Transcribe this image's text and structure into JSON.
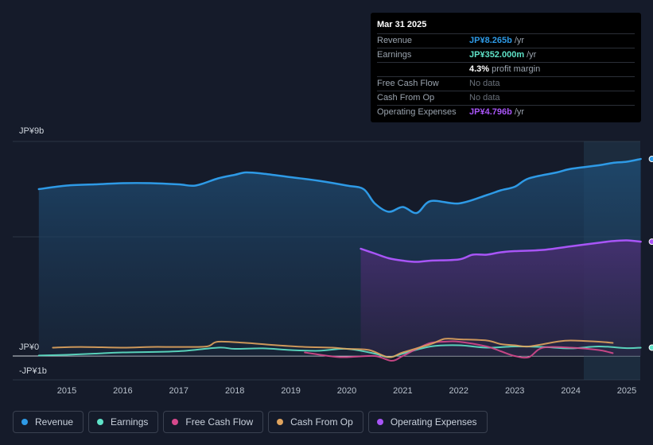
{
  "tooltip": {
    "date": "Mar 31 2025",
    "rows": [
      {
        "label": "Revenue",
        "value": "JP¥8.265b",
        "unit": "/yr",
        "color": "#2e9ae6"
      },
      {
        "label": "Earnings",
        "value": "JP¥352.000m",
        "unit": "/yr",
        "color": "#5fe3c8"
      },
      {
        "label": "",
        "value": "4.3%",
        "unit": "profit margin"
      },
      {
        "label": "Free Cash Flow",
        "value": "No data"
      },
      {
        "label": "Cash From Op",
        "value": "No data"
      },
      {
        "label": "Operating Expenses",
        "value": "JP¥4.796b",
        "unit": "/yr",
        "color": "#a855f7"
      }
    ]
  },
  "legend": [
    {
      "label": "Revenue",
      "color": "#2e9ae6"
    },
    {
      "label": "Earnings",
      "color": "#5fe3c8"
    },
    {
      "label": "Free Cash Flow",
      "color": "#d6498c"
    },
    {
      "label": "Cash From Op",
      "color": "#e0a45e"
    },
    {
      "label": "Operating Expenses",
      "color": "#a855f7"
    }
  ],
  "chart_data": {
    "type": "line",
    "title": "",
    "xlabel": "",
    "ylabel": "",
    "y_tick_labels": [
      "JP¥9b",
      "JP¥0",
      "-JP¥1b"
    ],
    "x_tick_labels": [
      "2015",
      "2016",
      "2017",
      "2018",
      "2019",
      "2020",
      "2021",
      "2022",
      "2023",
      "2024",
      "2025"
    ],
    "xlim": [
      2014.5,
      2025.25
    ],
    "ylim": [
      -1,
      9
    ],
    "series": [
      {
        "name": "Revenue",
        "color": "#2e9ae6",
        "area": true,
        "x": [
          2014.5,
          2015.0,
          2015.5,
          2016.0,
          2016.5,
          2017.0,
          2017.3,
          2017.7,
          2018.0,
          2018.2,
          2018.5,
          2019.0,
          2019.5,
          2020.0,
          2020.3,
          2020.5,
          2020.75,
          2021.0,
          2021.25,
          2021.5,
          2022.0,
          2022.5,
          2022.75,
          2023.0,
          2023.25,
          2023.75,
          2024.0,
          2024.5,
          2024.75,
          2025.0,
          2025.25
        ],
        "values": [
          7.0,
          7.15,
          7.2,
          7.25,
          7.25,
          7.2,
          7.15,
          7.45,
          7.6,
          7.7,
          7.65,
          7.5,
          7.35,
          7.15,
          7.0,
          6.4,
          6.05,
          6.25,
          6.0,
          6.5,
          6.4,
          6.75,
          6.95,
          7.1,
          7.45,
          7.7,
          7.85,
          8.0,
          8.1,
          8.15,
          8.265
        ]
      },
      {
        "name": "Earnings",
        "color": "#5fe3c8",
        "area": false,
        "x": [
          2014.5,
          2015.0,
          2015.5,
          2016.0,
          2017.0,
          2017.7,
          2018.0,
          2018.5,
          2019.0,
          2019.5,
          2020.0,
          2020.5,
          2020.75,
          2021.0,
          2021.5,
          2022.0,
          2022.5,
          2023.0,
          2023.5,
          2024.0,
          2024.5,
          2025.0,
          2025.25
        ],
        "values": [
          0.02,
          0.05,
          0.1,
          0.15,
          0.2,
          0.35,
          0.3,
          0.32,
          0.25,
          0.22,
          0.3,
          0.1,
          -0.05,
          0.1,
          0.4,
          0.45,
          0.35,
          0.4,
          0.38,
          0.32,
          0.4,
          0.33,
          0.352
        ]
      },
      {
        "name": "Free Cash Flow",
        "color": "#d6498c",
        "area": false,
        "x": [
          2019.25,
          2019.75,
          2020.0,
          2020.5,
          2020.8,
          2021.0,
          2021.25,
          2021.5,
          2021.75,
          2022.0,
          2022.5,
          2022.75,
          2023.0,
          2023.25,
          2023.5,
          2024.0,
          2024.5,
          2024.75
        ],
        "values": [
          0.15,
          -0.02,
          -0.05,
          0.0,
          -0.2,
          0.0,
          0.3,
          0.55,
          0.6,
          0.6,
          0.4,
          0.2,
          0.0,
          -0.05,
          0.35,
          0.35,
          0.25,
          0.12
        ]
      },
      {
        "name": "Cash From Op",
        "color": "#e0a45e",
        "area": false,
        "x": [
          2014.75,
          2015.25,
          2016.0,
          2016.5,
          2017.0,
          2017.5,
          2017.7,
          2018.2,
          2018.75,
          2019.25,
          2019.75,
          2020.0,
          2020.4,
          2020.75,
          2021.0,
          2021.5,
          2021.75,
          2022.0,
          2022.5,
          2022.75,
          2023.0,
          2023.25,
          2023.75,
          2024.0,
          2024.5,
          2024.75
        ],
        "values": [
          0.35,
          0.38,
          0.35,
          0.38,
          0.38,
          0.4,
          0.6,
          0.55,
          0.45,
          0.38,
          0.35,
          0.3,
          0.25,
          -0.05,
          0.15,
          0.5,
          0.72,
          0.7,
          0.65,
          0.5,
          0.45,
          0.4,
          0.6,
          0.65,
          0.6,
          0.55
        ]
      },
      {
        "name": "Operating Expenses",
        "color": "#a855f7",
        "area": true,
        "x": [
          2020.25,
          2020.5,
          2020.75,
          2021.0,
          2021.25,
          2021.5,
          2022.0,
          2022.25,
          2022.5,
          2022.75,
          2023.0,
          2023.5,
          2024.0,
          2024.5,
          2024.75,
          2025.0,
          2025.25
        ],
        "values": [
          4.5,
          4.3,
          4.1,
          4.0,
          3.95,
          4.0,
          4.05,
          4.25,
          4.25,
          4.35,
          4.4,
          4.45,
          4.6,
          4.75,
          4.82,
          4.85,
          4.796
        ]
      }
    ]
  }
}
